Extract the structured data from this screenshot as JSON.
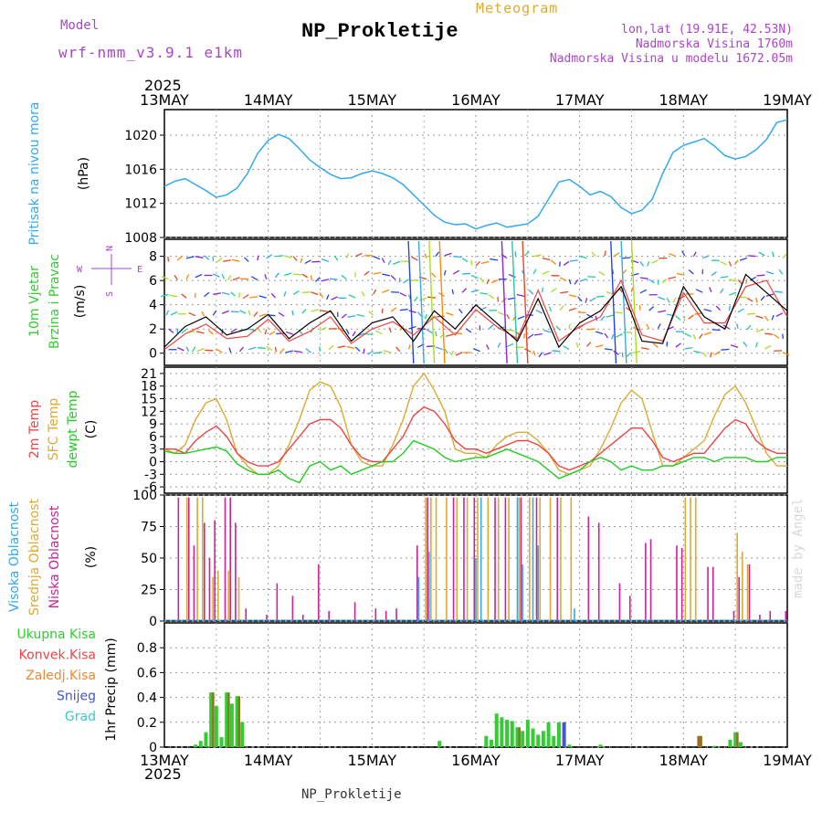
{
  "header": {
    "model_label": "Model",
    "model_name": "wrf-nmm_v3.9.1 e1km",
    "title": "NP_Prokletije",
    "subtitle": "Meteogram",
    "coords": "lon,lat (19.91E, 42.53N)",
    "elevation": "Nadmorska Visina 1760m",
    "model_elevation": "Nadmorska Visina u modelu 1672.05m",
    "year_top": "2025",
    "year_bottom": "2025",
    "footer": "NP_Prokletije",
    "credit": "made by Angel"
  },
  "colors": {
    "pressure": "#33aaee",
    "temp2m": "#ee4444",
    "sfc": "#ddaa33",
    "dewpt": "#22cc22",
    "high_cloud": "#33aaee",
    "mid_cloud": "#ddaa33",
    "low_cloud": "#cc2299",
    "total_precip": "#33cc33",
    "snow": "#4455cc",
    "wind_dir_label": "#aa44cc"
  },
  "chart_data": [
    {
      "type": "line",
      "panel": "pressure",
      "ylabel_left": "Pritisak na nivou mora",
      "ylabel": "(hPa)",
      "ylim": [
        1008,
        1023
      ],
      "yticks": [
        "1008",
        "1012",
        "1016",
        "1020"
      ],
      "x": [
        0,
        0.1,
        0.2,
        0.3,
        0.4,
        0.5,
        0.6,
        0.7,
        0.8,
        0.9,
        1.0,
        1.1,
        1.2,
        1.3,
        1.4,
        1.5,
        1.6,
        1.7,
        1.8,
        1.9,
        2.0,
        2.1,
        2.2,
        2.3,
        2.4,
        2.5,
        2.6,
        2.7,
        2.8,
        2.9,
        3.0,
        3.1,
        3.2,
        3.3,
        3.4,
        3.5,
        3.6,
        3.7,
        3.8,
        3.9,
        4.0,
        4.1,
        4.2,
        4.3,
        4.4,
        4.5,
        4.6,
        4.7,
        4.8,
        4.9,
        5.0,
        5.1,
        5.2,
        5.3,
        5.4,
        5.5,
        5.6,
        5.7,
        5.8,
        5.9,
        6.0
      ],
      "series": [
        {
          "values": [
            1014.0,
            1014.6,
            1014.9,
            1014.2,
            1013.5,
            1012.7,
            1013.0,
            1013.8,
            1015.5,
            1017.9,
            1019.4,
            1020.1,
            1019.6,
            1018.4,
            1017.1,
            1016.2,
            1015.4,
            1014.9,
            1015.0,
            1015.5,
            1015.8,
            1015.5,
            1015.0,
            1014.2,
            1013.0,
            1011.8,
            1010.6,
            1009.8,
            1009.5,
            1009.6,
            1009.0,
            1009.4,
            1009.7,
            1009.2,
            1009.4,
            1009.6,
            1010.5,
            1012.5,
            1014.5,
            1014.8,
            1014.0,
            1013.0,
            1013.4,
            1012.8,
            1011.5,
            1010.8,
            1011.2,
            1012.5,
            1015.5,
            1018.0,
            1018.8,
            1019.2,
            1019.6,
            1018.7,
            1017.6,
            1017.2,
            1017.5,
            1018.3,
            1019.5,
            1021.5,
            1021.8
          ]
        }
      ]
    },
    {
      "type": "line",
      "panel": "wind",
      "ylabel_left": "10m Vjetar",
      "ylabel_left2": "Brzina i Pravac",
      "ylabel": "(m/s)",
      "ylim": [
        -1,
        9.4
      ],
      "yticks": [
        "0",
        "2",
        "4",
        "6",
        "8"
      ],
      "compass": [
        "N",
        "S",
        "W",
        "E"
      ],
      "x": [
        0,
        0.2,
        0.4,
        0.6,
        0.8,
        1.0,
        1.2,
        1.4,
        1.6,
        1.8,
        2.0,
        2.2,
        2.4,
        2.6,
        2.8,
        3.0,
        3.2,
        3.4,
        3.6,
        3.8,
        4.0,
        4.2,
        4.4,
        4.6,
        4.8,
        5.0,
        5.2,
        5.4,
        5.6,
        5.8,
        6.0
      ],
      "series": [
        {
          "name": "speed",
          "values": [
            0.5,
            2.2,
            3.0,
            1.5,
            2.0,
            3.2,
            1.2,
            2.5,
            3.5,
            1.0,
            2.5,
            3.0,
            1.0,
            3.5,
            2.0,
            4.0,
            2.5,
            1.0,
            4.5,
            0.5,
            2.5,
            3.5,
            5.5,
            1.0,
            0.8,
            5.5,
            3.0,
            2.0,
            6.5,
            5.0,
            3.5
          ]
        },
        {
          "name": "gust",
          "values": [
            0.3,
            1.6,
            2.4,
            1.2,
            1.4,
            2.8,
            1.0,
            1.8,
            3.0,
            0.8,
            2.0,
            2.6,
            1.5,
            3.0,
            1.5,
            3.6,
            2.2,
            1.2,
            5.2,
            1.0,
            2.2,
            3.0,
            6.0,
            1.5,
            1.0,
            5.0,
            2.5,
            2.5,
            5.5,
            6.0,
            3.0
          ]
        }
      ]
    },
    {
      "type": "line",
      "panel": "temperature",
      "ylabel_left": [
        "2m Temp",
        "SFC Temp",
        "dewpt Temp"
      ],
      "ylabel": "(C)",
      "ylim": [
        -7.5,
        22.5
      ],
      "yticks": [
        "-6",
        "-3",
        "0",
        "3",
        "6",
        "9",
        "12",
        "15",
        "18",
        "21"
      ],
      "x": [
        0,
        0.1,
        0.2,
        0.3,
        0.4,
        0.5,
        0.6,
        0.7,
        0.8,
        0.9,
        1.0,
        1.1,
        1.2,
        1.3,
        1.4,
        1.5,
        1.6,
        1.7,
        1.8,
        1.9,
        2.0,
        2.1,
        2.2,
        2.3,
        2.4,
        2.5,
        2.6,
        2.7,
        2.8,
        2.9,
        3.0,
        3.1,
        3.2,
        3.3,
        3.4,
        3.5,
        3.6,
        3.7,
        3.8,
        3.9,
        4.0,
        4.1,
        4.2,
        4.3,
        4.4,
        4.5,
        4.6,
        4.7,
        4.8,
        4.9,
        5.0,
        5.1,
        5.2,
        5.3,
        5.4,
        5.5,
        5.6,
        5.7,
        5.8,
        5.9,
        6.0
      ],
      "series": [
        {
          "name": "2m Temp",
          "values": [
            3,
            3,
            2,
            5,
            7,
            8.5,
            6,
            2,
            0,
            -1,
            -1,
            0,
            3,
            6,
            9,
            10,
            10,
            8,
            4,
            1,
            0,
            0,
            3,
            6,
            11,
            13,
            12,
            9,
            5,
            3,
            3,
            2,
            3,
            4,
            5,
            5,
            4,
            2,
            -1,
            -2,
            -1,
            0,
            2,
            4,
            6,
            8,
            8,
            5,
            1,
            0,
            1,
            2,
            2,
            5,
            8,
            10,
            9,
            5,
            3,
            2,
            2
          ]
        },
        {
          "name": "SFC Temp",
          "values": [
            3,
            2,
            4,
            10,
            14,
            15,
            10,
            2,
            -1,
            -3,
            -3,
            -1,
            4,
            10,
            17,
            19,
            18,
            13,
            4,
            0,
            -1,
            -1,
            4,
            10,
            18,
            21,
            17,
            12,
            3,
            2,
            2,
            1,
            4,
            6,
            7,
            7,
            5,
            2,
            -2,
            -3,
            -2,
            -1,
            3,
            8,
            14,
            17,
            15,
            7,
            -1,
            -1,
            1,
            3,
            5,
            11,
            16,
            18,
            14,
            8,
            2,
            -1,
            -1
          ]
        },
        {
          "name": "dewpt Temp",
          "values": [
            2.5,
            2,
            2,
            2.5,
            3,
            3.5,
            2.5,
            -0.5,
            -2,
            -3,
            -3,
            -2,
            -4,
            -5,
            -1,
            0,
            -2,
            -1,
            -3,
            -2,
            -1,
            0,
            0,
            2,
            5,
            4,
            3,
            1,
            0,
            0.5,
            1,
            1,
            2,
            3,
            2,
            1,
            0,
            -2,
            -4,
            -3,
            -2,
            0,
            1,
            0,
            -2,
            -1,
            -2,
            -2,
            -1,
            -1,
            0,
            1,
            1,
            0,
            1,
            1,
            1,
            0,
            0,
            1,
            1
          ]
        }
      ]
    },
    {
      "type": "bar",
      "panel": "clouds",
      "ylabel_left": [
        "Visoka Oblacnost",
        "Srednja Oblacnost",
        "Niska Oblacnost"
      ],
      "ylabel": "(%)",
      "ylim": [
        0,
        100
      ],
      "yticks": [
        "0",
        "25",
        "50",
        "75",
        "100"
      ],
      "series": [
        {
          "name": "Visoka Oblacnost",
          "x": [
            2.45,
            2.55,
            3.0,
            3.05,
            3.4,
            3.45,
            3.55,
            3.6,
            3.95
          ],
          "values": [
            35,
            55,
            50,
            98,
            98,
            45,
            98,
            60,
            10
          ]
        },
        {
          "name": "Srednja Oblacnost",
          "x": [
            0.2,
            0.3,
            0.35,
            0.45,
            0.5,
            0.6,
            0.7,
            2.5,
            2.55,
            2.6,
            2.7,
            2.8,
            2.9,
            3.0,
            3.1,
            3.2,
            3.3,
            3.4,
            3.5,
            3.6,
            3.7,
            3.8,
            3.9,
            5.0,
            5.05,
            5.1,
            5.5,
            5.55,
            5.6
          ],
          "values": [
            98,
            98,
            98,
            35,
            40,
            40,
            35,
            98,
            98,
            98,
            98,
            98,
            98,
            98,
            98,
            98,
            98,
            98,
            98,
            98,
            98,
            98,
            98,
            98,
            98,
            98,
            70,
            55,
            45
          ]
        },
        {
          "name": "Niska Oblacnost",
          "x": [
            0.1,
            0.2,
            0.25,
            0.35,
            0.4,
            0.45,
            0.55,
            0.6,
            0.65,
            0.75,
            0.95,
            1.05,
            1.2,
            1.3,
            1.45,
            1.55,
            1.8,
            2.0,
            2.1,
            2.2,
            2.4,
            2.5,
            2.75,
            2.85,
            2.95,
            3.15,
            3.25,
            3.4,
            3.55,
            3.75,
            4.05,
            4.15,
            4.35,
            4.45,
            4.6,
            4.65,
            4.9,
            4.95,
            5.2,
            5.25,
            5.45,
            5.5,
            5.6,
            5.7,
            5.8,
            5.95
          ],
          "values": [
            98,
            98,
            60,
            78,
            50,
            80,
            98,
            98,
            78,
            10,
            5,
            30,
            20,
            5,
            45,
            8,
            15,
            10,
            8,
            10,
            60,
            98,
            98,
            98,
            98,
            98,
            98,
            98,
            98,
            98,
            83,
            78,
            30,
            20,
            62,
            65,
            60,
            58,
            43,
            43,
            8,
            35,
            45,
            5,
            8,
            8
          ]
        }
      ]
    },
    {
      "type": "bar",
      "panel": "precipitation",
      "ylabel_left": [
        "Ukupna Kisa",
        "Konvek.Kisa",
        "Zaledj.Kisa",
        "Snijeg",
        "Grad"
      ],
      "ylabel": "1hr Precip (mm)",
      "ylim": [
        0,
        1.0
      ],
      "yticks": [
        "0",
        "0.2",
        "0.4",
        "0.6",
        "0.8"
      ],
      "series": [
        {
          "name": "Ukupna Kisa",
          "x": [
            0.3,
            0.35,
            0.4,
            0.45,
            0.5,
            0.55,
            0.6,
            0.65,
            0.7,
            0.75,
            2.65,
            3.1,
            3.15,
            3.2,
            3.25,
            3.3,
            3.35,
            3.4,
            3.45,
            3.5,
            3.55,
            3.6,
            3.65,
            3.7,
            3.75,
            3.8,
            3.9,
            4.2,
            5.3,
            5.45,
            5.5,
            5.55
          ],
          "values": [
            0.02,
            0.05,
            0.12,
            0.44,
            0.33,
            0.08,
            0.44,
            0.35,
            0.41,
            0.2,
            0.05,
            0.09,
            0.06,
            0.27,
            0.24,
            0.22,
            0.21,
            0.16,
            0.13,
            0.22,
            0.15,
            0.1,
            0.13,
            0.2,
            0.09,
            0.2,
            0.02,
            0.02,
            0.01,
            0.06,
            0.12,
            0.04
          ]
        },
        {
          "name": "Snijeg",
          "x": [
            3.85
          ],
          "values": [
            0.2
          ]
        },
        {
          "name": "Zaledj.Kisa",
          "x": [
            5.15
          ],
          "values": [
            0.09
          ]
        }
      ]
    }
  ],
  "x_axis": {
    "categories": [
      "13MAY",
      "14MAY",
      "15MAY",
      "16MAY",
      "17MAY",
      "18MAY",
      "19MAY"
    ]
  }
}
